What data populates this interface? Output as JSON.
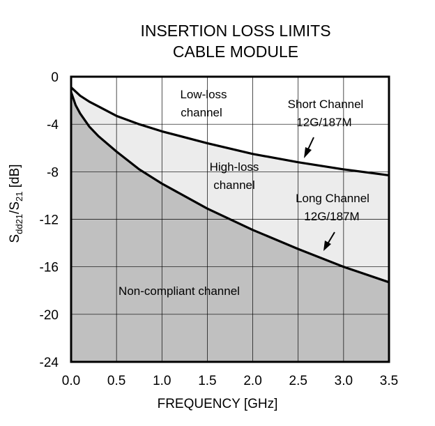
{
  "chart_data": {
    "type": "area",
    "title_lines": [
      "INSERTION LOSS LIMITS",
      "CABLE MODULE"
    ],
    "xlabel": "FREQUENCY [GHz]",
    "ylabel": {
      "main": "S",
      "sub1": "dd21",
      "mid": "/S",
      "sub2": "21",
      "tail": " [dB]"
    },
    "xlim": [
      0,
      3.5
    ],
    "ylim": [
      -24,
      0
    ],
    "x_ticks": [
      0,
      0.5,
      1,
      1.5,
      2,
      2.5,
      3,
      3.5
    ],
    "x_tick_labels": [
      "0.0",
      "0.5",
      "1.0",
      "1.5",
      "2.0",
      "2.5",
      "3.0",
      "3.5"
    ],
    "y_ticks": [
      0,
      -4,
      -8,
      -12,
      -16,
      -20,
      -24
    ],
    "y_tick_labels": [
      "0",
      "-4",
      "-8",
      "-12",
      "-16",
      "-20",
      "-24"
    ],
    "grid": true,
    "series": [
      {
        "name": "Short Channel 12G/187M",
        "x": [
          0,
          0.1,
          0.2,
          0.3,
          0.5,
          0.75,
          1.0,
          1.5,
          2.0,
          2.5,
          3.0,
          3.5
        ],
        "values": [
          -0.9,
          -1.6,
          -2.1,
          -2.5,
          -3.3,
          -4.0,
          -4.6,
          -5.6,
          -6.5,
          -7.2,
          -7.8,
          -8.3
        ]
      },
      {
        "name": "Long Channel 12G/187M",
        "x": [
          0,
          0.05,
          0.1,
          0.2,
          0.3,
          0.5,
          0.75,
          1.0,
          1.5,
          2.0,
          2.5,
          3.0,
          3.5
        ],
        "values": [
          -1.3,
          -2.4,
          -3.1,
          -4.2,
          -5.0,
          -6.3,
          -7.8,
          -9.0,
          -11.1,
          -12.9,
          -14.5,
          -16.0,
          -17.3
        ]
      }
    ],
    "region_labels": [
      {
        "lines": [
          "Low-loss",
          "channel"
        ]
      },
      {
        "lines": [
          "High-loss",
          "channel"
        ]
      },
      {
        "lines": [
          "Non-compliant channel"
        ]
      }
    ],
    "annotations": [
      {
        "lines": [
          "Short Channel",
          "12G/187M"
        ]
      },
      {
        "lines": [
          "Long Channel",
          "12G/187M"
        ]
      }
    ],
    "colors": {
      "non_compliant_fill": "#c0c0c0",
      "high_loss_fill": "#ececec",
      "curve": "#000000",
      "grid": "#000000"
    }
  }
}
